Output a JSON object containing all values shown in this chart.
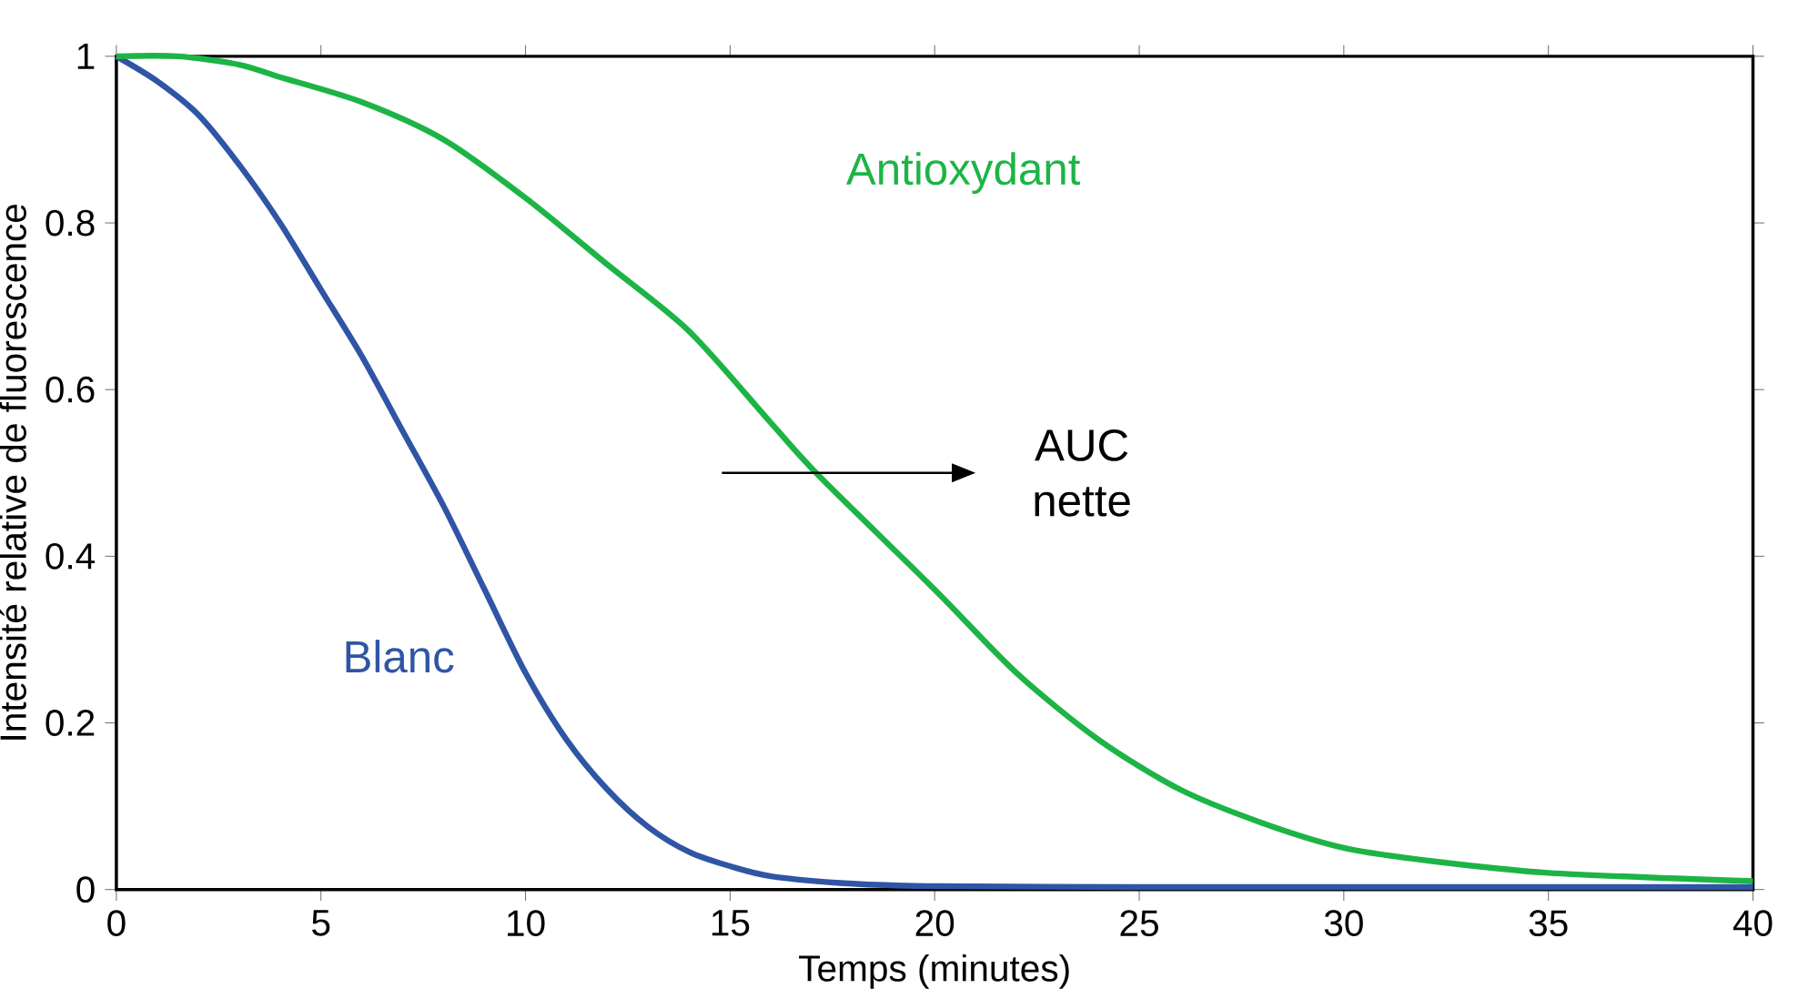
{
  "chart_data": {
    "type": "line",
    "xlabel": "Temps (minutes)",
    "ylabel": "Intensité relative de fluorescence",
    "xlim": [
      0,
      40
    ],
    "ylim": [
      0,
      1
    ],
    "xticks": [
      0,
      5,
      10,
      15,
      20,
      25,
      30,
      35,
      40
    ],
    "yticks": [
      0,
      0.2,
      0.4,
      0.6,
      0.8,
      1
    ],
    "grid": false,
    "legend": false,
    "marker": "none",
    "line_style": "solid",
    "annotations": [
      "AUC nette"
    ],
    "series": [
      {
        "name": "Blanc",
        "color": "#2f55a4",
        "x": [
          0,
          1,
          2,
          3,
          4,
          5,
          6,
          7,
          8,
          9,
          10,
          11,
          12,
          13,
          14,
          15,
          16,
          18,
          20,
          25,
          30,
          35,
          40
        ],
        "values": [
          1,
          0.97,
          0.93,
          0.87,
          0.8,
          0.72,
          0.64,
          0.55,
          0.46,
          0.36,
          0.26,
          0.18,
          0.12,
          0.075,
          0.045,
          0.028,
          0.016,
          0.007,
          0.004,
          0.003,
          0.003,
          0.003,
          0.003
        ]
      },
      {
        "name": "Antioxydant",
        "color": "#1db446",
        "x": [
          0,
          1.5,
          3,
          4,
          6,
          8,
          10,
          12,
          14,
          16,
          17.2,
          20,
          22,
          24,
          26,
          28,
          30,
          32,
          35,
          40
        ],
        "values": [
          1,
          1.0,
          0.99,
          0.975,
          0.945,
          0.9,
          0.83,
          0.75,
          0.67,
          0.56,
          0.495,
          0.36,
          0.26,
          0.18,
          0.12,
          0.08,
          0.05,
          0.035,
          0.02,
          0.01
        ]
      }
    ]
  }
}
